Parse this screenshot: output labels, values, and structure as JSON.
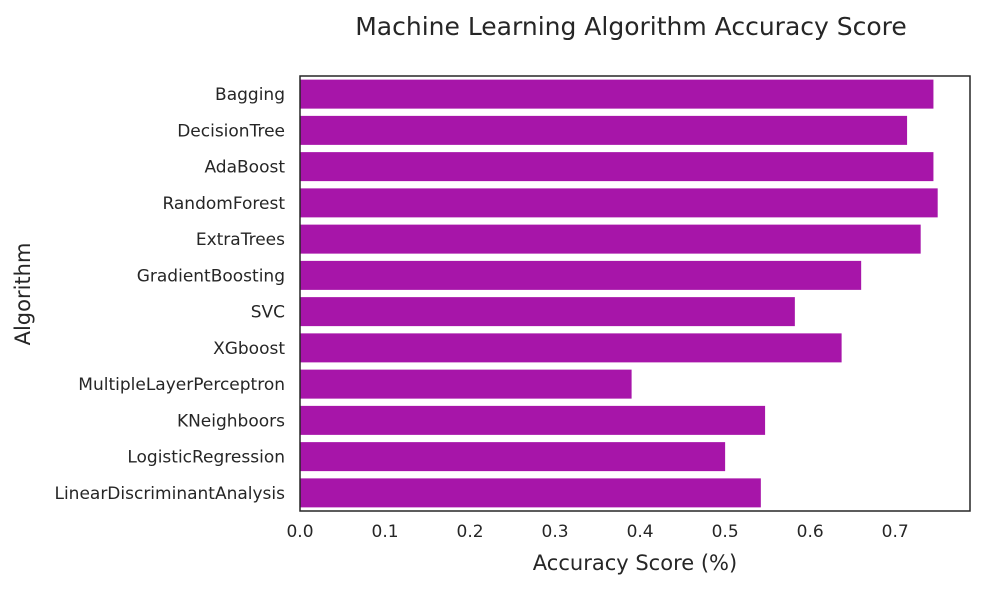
{
  "chart_data": {
    "type": "bar",
    "orientation": "horizontal",
    "title": "Machine Learning Algorithm Accuracy Score",
    "xlabel": "Accuracy Score (%)",
    "ylabel": "Algorithm",
    "categories": [
      "Bagging",
      "DecisionTree",
      "AdaBoost",
      "RandomForest",
      "ExtraTrees",
      "GradientBoosting",
      "SVC",
      "XGboost",
      "MultipleLayerPerceptron",
      "KNeighboors",
      "LogisticRegression",
      "LinearDiscriminantAnalysis"
    ],
    "values": [
      0.745,
      0.714,
      0.745,
      0.75,
      0.73,
      0.66,
      0.582,
      0.637,
      0.39,
      0.547,
      0.5,
      0.542
    ],
    "xlim": [
      0,
      0.788
    ],
    "xticks": [
      "0.0",
      "0.1",
      "0.2",
      "0.3",
      "0.4",
      "0.5",
      "0.6",
      "0.7"
    ],
    "bar_color": "#a715a9",
    "grid": false,
    "legend": "none"
  }
}
